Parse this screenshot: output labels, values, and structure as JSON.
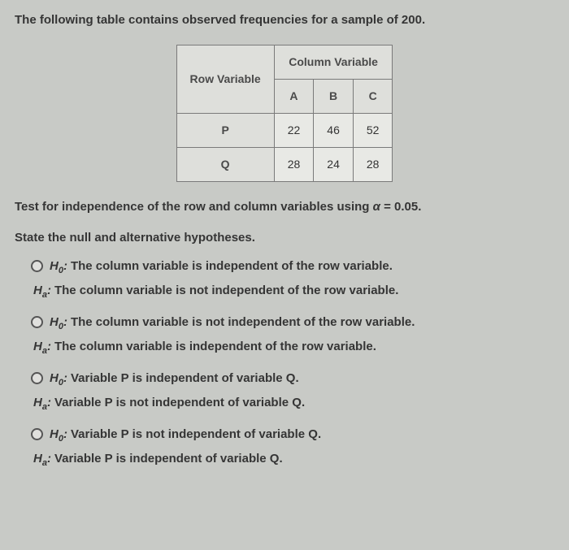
{
  "intro": "The following table contains observed frequencies for a sample of 200.",
  "table": {
    "row_var_label": "Row Variable",
    "col_var_label": "Column Variable",
    "columns": [
      "A",
      "B",
      "C"
    ],
    "rows": [
      {
        "label": "P",
        "cells": [
          "22",
          "46",
          "52"
        ]
      },
      {
        "label": "Q",
        "cells": [
          "28",
          "24",
          "28"
        ]
      }
    ]
  },
  "test_line_pre": "Test for independence of the row and column variables using ",
  "alpha_sym": "α",
  "test_line_post": " = 0.05.",
  "state_line": "State the null and alternative hypotheses.",
  "h0_label": "H",
  "h0_sub": "0",
  "ha_label": "H",
  "ha_sub": "a",
  "colon": ": ",
  "options": [
    {
      "h0": "The column variable is independent of the row variable.",
      "ha": "The column variable is not independent of the row variable."
    },
    {
      "h0": "The column variable is not independent of the row variable.",
      "ha": "The column variable is independent of the row variable."
    },
    {
      "h0": "Variable P is independent of variable Q.",
      "ha": "Variable P is not independent of variable Q."
    },
    {
      "h0": "Variable P is not independent of variable Q.",
      "ha": "Variable P is independent of variable Q."
    }
  ]
}
